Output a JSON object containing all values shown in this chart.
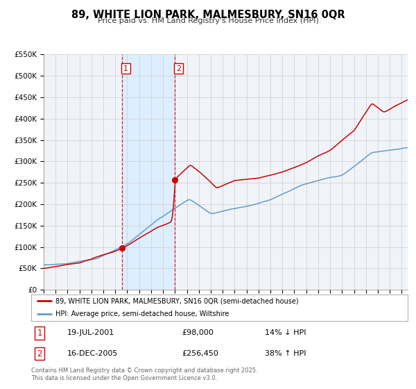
{
  "title": "89, WHITE LION PARK, MALMESBURY, SN16 0QR",
  "subtitle": "Price paid vs. HM Land Registry's House Price Index (HPI)",
  "ylim": [
    0,
    550000
  ],
  "yticks": [
    0,
    50000,
    100000,
    150000,
    200000,
    250000,
    300000,
    350000,
    400000,
    450000,
    500000,
    550000
  ],
  "ytick_labels": [
    "£0",
    "£50K",
    "£100K",
    "£150K",
    "£200K",
    "£250K",
    "£300K",
    "£350K",
    "£400K",
    "£450K",
    "£500K",
    "£550K"
  ],
  "xlim_start": 1995.0,
  "xlim_end": 2025.5,
  "sale1_date": 2001.54,
  "sale1_price": 98000,
  "sale2_date": 2005.96,
  "sale2_price": 256450,
  "sale1_text": "19-JUL-2001",
  "sale1_price_str": "£98,000",
  "sale1_hpi_str": "14% ↓ HPI",
  "sale2_text": "16-DEC-2005",
  "sale2_price_str": "£256,450",
  "sale2_hpi_str": "38% ↑ HPI",
  "red_color": "#cc0000",
  "blue_color": "#6699cc",
  "shade_color": "#ddeeff",
  "background_color": "#f0f4f8",
  "grid_color": "#cccccc",
  "legend_label_red": "89, WHITE LION PARK, MALMESBURY, SN16 0QR (semi-detached house)",
  "legend_label_blue": "HPI: Average price, semi-detached house, Wiltshire",
  "footer": "Contains HM Land Registry data © Crown copyright and database right 2025.\nThis data is licensed under the Open Government Licence v3.0."
}
